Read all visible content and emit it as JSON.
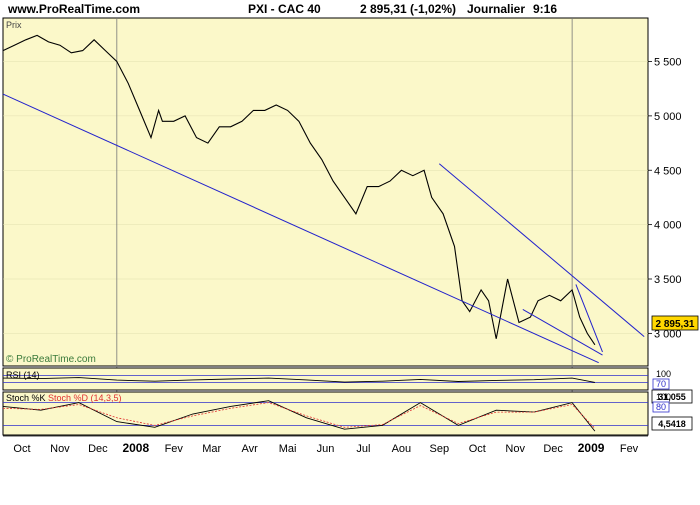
{
  "header": {
    "site": "www.ProRealTime.com",
    "instrument": "PXI - CAC 40",
    "last_price": "2 895,31",
    "change": "(-1,02%)",
    "period": "Journalier",
    "time": "9:16"
  },
  "colors": {
    "panel_bg": "#fbf8c9",
    "price_line": "#000000",
    "trendline": "#2222cc",
    "rsi_line": "#000000",
    "stoch_k": "#000000",
    "stoch_d": "#e03030",
    "level_line": "#3030cc",
    "label_box": "#ffd700"
  },
  "chart_data": [
    {
      "type": "line",
      "panel": "price",
      "title": "Prix",
      "watermark": "© ProRealTime.com",
      "y_ticks": [
        "5 500",
        "5 000",
        "4 500",
        "4 000",
        "3 500",
        "3 000"
      ],
      "y_tick_values": [
        5500,
        5000,
        4500,
        4000,
        3500,
        3000
      ],
      "ylim": [
        2700,
        5900
      ],
      "last_label": "2 895,31",
      "x_labels": [
        "Oct",
        "Nov",
        "Dec",
        "2008",
        "Fev",
        "Mar",
        "Avr",
        "Mai",
        "Jun",
        "Jul",
        "Aou",
        "Sep",
        "Oct",
        "Nov",
        "Dec",
        "2009",
        "Fev"
      ],
      "x_label_positions": [
        0.5,
        1.5,
        2.5,
        3.5,
        4.5,
        5.5,
        6.5,
        7.5,
        8.5,
        9.5,
        10.5,
        11.5,
        12.5,
        13.5,
        14.5,
        15.5,
        16.5
      ],
      "year_separators": [
        3,
        15
      ],
      "series": [
        {
          "x": [
            0,
            0.3,
            0.6,
            0.9,
            1.2,
            1.5,
            1.8,
            2.1,
            2.4,
            2.7,
            3.0,
            3.3,
            3.6,
            3.9,
            4.1,
            4.2,
            4.5,
            4.8,
            5.1,
            5.4,
            5.7,
            6.0,
            6.3,
            6.6,
            6.9,
            7.2,
            7.5,
            7.8,
            8.1,
            8.4,
            8.7,
            9.0,
            9.3,
            9.6,
            9.9,
            10.2,
            10.5,
            10.8,
            11.1,
            11.3,
            11.6,
            11.9,
            12.1,
            12.3,
            12.6,
            12.8,
            13.0,
            13.3,
            13.6,
            13.9,
            14.1,
            14.4,
            14.7,
            15.0,
            15.2,
            15.4,
            15.6
          ],
          "y": [
            5600,
            5650,
            5700,
            5740,
            5680,
            5650,
            5580,
            5600,
            5700,
            5600,
            5500,
            5300,
            5050,
            4800,
            5050,
            4950,
            4950,
            5000,
            4800,
            4750,
            4900,
            4900,
            4950,
            5050,
            5050,
            5100,
            5050,
            4950,
            4750,
            4600,
            4400,
            4250,
            4100,
            4350,
            4350,
            4400,
            4500,
            4450,
            4500,
            4250,
            4100,
            3800,
            3300,
            3200,
            3400,
            3300,
            2950,
            3500,
            3100,
            3150,
            3300,
            3350,
            3300,
            3400,
            3150,
            3000,
            2895
          ]
        },
        {
          "name": "trendline-lower",
          "x": [
            0,
            15.7
          ],
          "y": [
            5200,
            2730
          ]
        },
        {
          "name": "trendline-upper",
          "x": [
            11.5,
            16.9
          ],
          "y": [
            4560,
            2970
          ]
        },
        {
          "name": "trendline-channel",
          "x": [
            15.1,
            15.8
          ],
          "y": [
            3450,
            2830
          ]
        },
        {
          "name": "trendline-mid",
          "x": [
            13.7,
            15.8
          ],
          "y": [
            3220,
            2800
          ]
        }
      ]
    },
    {
      "type": "line",
      "panel": "rsi",
      "title": "RSI (14)",
      "levels": [
        30,
        70
      ],
      "level_labels": [
        "70"
      ],
      "y_ticks": [
        "100"
      ],
      "ylim": [
        0,
        100
      ],
      "last_label": "31,055",
      "series": [
        {
          "x": [
            0,
            1,
            2,
            3,
            4,
            5,
            6,
            7,
            8,
            9,
            10,
            11,
            12,
            13,
            14,
            15,
            15.6
          ],
          "y": [
            55,
            52,
            58,
            44,
            38,
            45,
            50,
            55,
            45,
            33,
            38,
            48,
            36,
            42,
            46,
            55,
            31
          ]
        }
      ]
    },
    {
      "type": "line",
      "panel": "stochastic",
      "title": "Stoch %K",
      "title2": "Stoch %D (14,3,5)",
      "levels": [
        20,
        80
      ],
      "level_labels": [
        "80"
      ],
      "y_ticks": [
        "100"
      ],
      "ylim": [
        0,
        100
      ],
      "last_label": "4,5418",
      "series": [
        {
          "name": "%K",
          "x": [
            0,
            1,
            2,
            3,
            4,
            5,
            6,
            7,
            8,
            9,
            10,
            11,
            12,
            13,
            14,
            15,
            15.6
          ],
          "y": [
            70,
            60,
            80,
            30,
            15,
            50,
            70,
            85,
            40,
            10,
            20,
            80,
            20,
            60,
            55,
            80,
            5
          ]
        },
        {
          "name": "%D",
          "x": [
            0,
            1,
            2,
            3,
            4,
            5,
            6,
            7,
            8,
            9,
            10,
            11,
            12,
            13,
            14,
            15,
            15.6
          ],
          "y": [
            65,
            62,
            75,
            40,
            20,
            45,
            65,
            80,
            45,
            15,
            22,
            72,
            25,
            55,
            55,
            75,
            12
          ]
        }
      ]
    }
  ]
}
